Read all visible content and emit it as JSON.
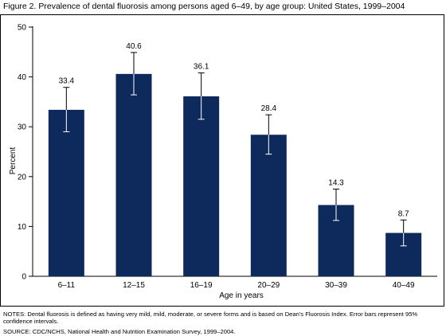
{
  "figure": {
    "title": "Figure 2. Prevalence of dental fluorosis among persons aged 6–49, by age group: United States, 1999–2004",
    "notes": "NOTES: Dental fluorosis is defined as having very mild, mild, moderate, or severe forms and is based on Dean's Fluorosis Index. Error bars represent 95% confidence intervals.",
    "source": "SOURCE: CDC/NCHS, National Health and Nutrition Examination Survey, 1999–2004."
  },
  "chart_data": {
    "type": "bar",
    "title": "Figure 2. Prevalence of dental fluorosis among persons aged 6–49, by age group: United States, 1999–2004",
    "xlabel": "Age in years",
    "ylabel": "Percent",
    "ylim": [
      0,
      50
    ],
    "yticks": [
      0,
      10,
      20,
      30,
      40,
      50
    ],
    "grid": false,
    "categories": [
      "6–11",
      "12–15",
      "16–19",
      "20–29",
      "30–39",
      "40–49"
    ],
    "values": [
      33.4,
      40.6,
      36.1,
      28.4,
      14.3,
      8.7
    ],
    "value_labels": [
      "33.4",
      "40.6",
      "36.1",
      "28.4",
      "14.3",
      "8.7"
    ],
    "error_low": [
      29.0,
      36.4,
      31.5,
      24.5,
      11.2,
      6.1
    ],
    "error_high": [
      37.9,
      44.9,
      40.8,
      32.4,
      17.5,
      11.3
    ],
    "bar_color": "#0e2a5c"
  }
}
